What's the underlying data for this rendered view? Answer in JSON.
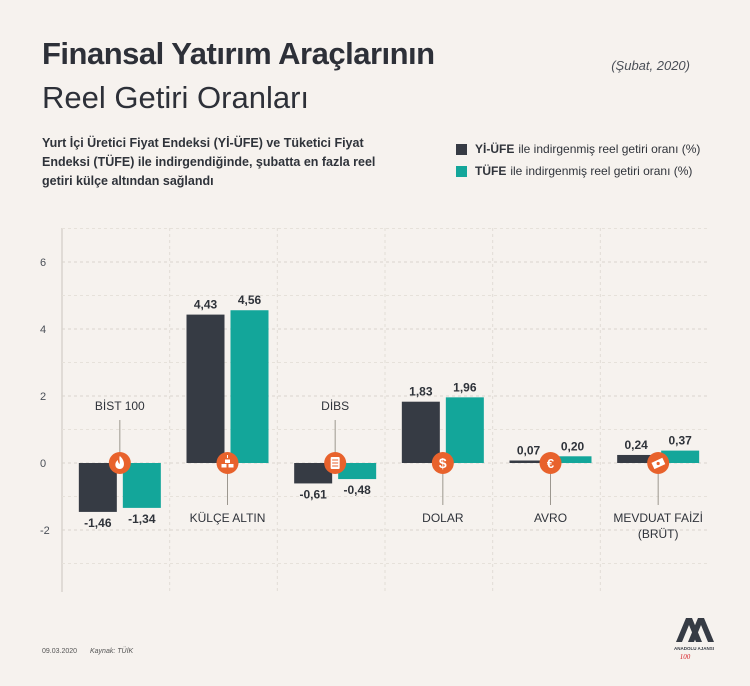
{
  "header": {
    "title_bold": "Finansal Yatırım Araçlarının",
    "title_light": "Reel Getiri Oranları",
    "date": "(Şubat, 2020)",
    "description": "Yurt İçi Üretici Fiyat Endeksi (Yİ-ÜFE) ve Tüketici Fiyat Endeksi (TÜFE) ile indirgendiğinde, şubatta en fazla reel getiri külçe altından sağlandı"
  },
  "legend": {
    "items": [
      {
        "key": "Yİ-ÜFE",
        "text": "ile indirgenmiş reel getiri oranı (%)",
        "color": "#363b44"
      },
      {
        "key": "TÜFE",
        "text": "ile indirgenmiş reel getiri oranı (%)",
        "color": "#13a69a"
      }
    ]
  },
  "chart_data": {
    "type": "bar",
    "categories": [
      "BİST 100",
      "KÜLÇE ALTIN",
      "DİBS",
      "DOLAR",
      "AVRO",
      "MEVDUAT FAİZİ (BRÜT)"
    ],
    "series": [
      {
        "name": "Yİ-ÜFE",
        "values": [
          -1.46,
          4.43,
          -0.61,
          1.83,
          0.07,
          0.24
        ],
        "labels": [
          "-1,46",
          "4,43",
          "-0,61",
          "1,83",
          "0,07",
          "0,24"
        ]
      },
      {
        "name": "TÜFE",
        "values": [
          -1.34,
          4.56,
          -0.48,
          1.96,
          0.2,
          0.37
        ],
        "labels": [
          "-1,34",
          "4,56",
          "-0,48",
          "1,96",
          "0,20",
          "0,37"
        ]
      }
    ],
    "yticks": [
      6,
      4,
      2,
      0,
      -2
    ],
    "ylim": [
      -3,
      7
    ],
    "category_label_lines": [
      [
        "BİST 100"
      ],
      [
        "KÜLÇE ALTIN"
      ],
      [
        "DİBS"
      ],
      [
        "DOLAR"
      ],
      [
        "AVRO"
      ],
      [
        "MEVDUAT FAİZİ",
        "(BRÜT)"
      ]
    ],
    "category_label_above": [
      true,
      false,
      true,
      false,
      false,
      false
    ],
    "icons": [
      "fire-icon",
      "gold-bars-icon",
      "document-icon",
      "dollar-icon",
      "euro-icon",
      "money-stack-icon"
    ],
    "icon_color": "#e8622c"
  },
  "footer": {
    "date": "09.03.2020",
    "source": "Kaynak: TÜİK",
    "logo_text": "ANADOLU AJANSI"
  }
}
